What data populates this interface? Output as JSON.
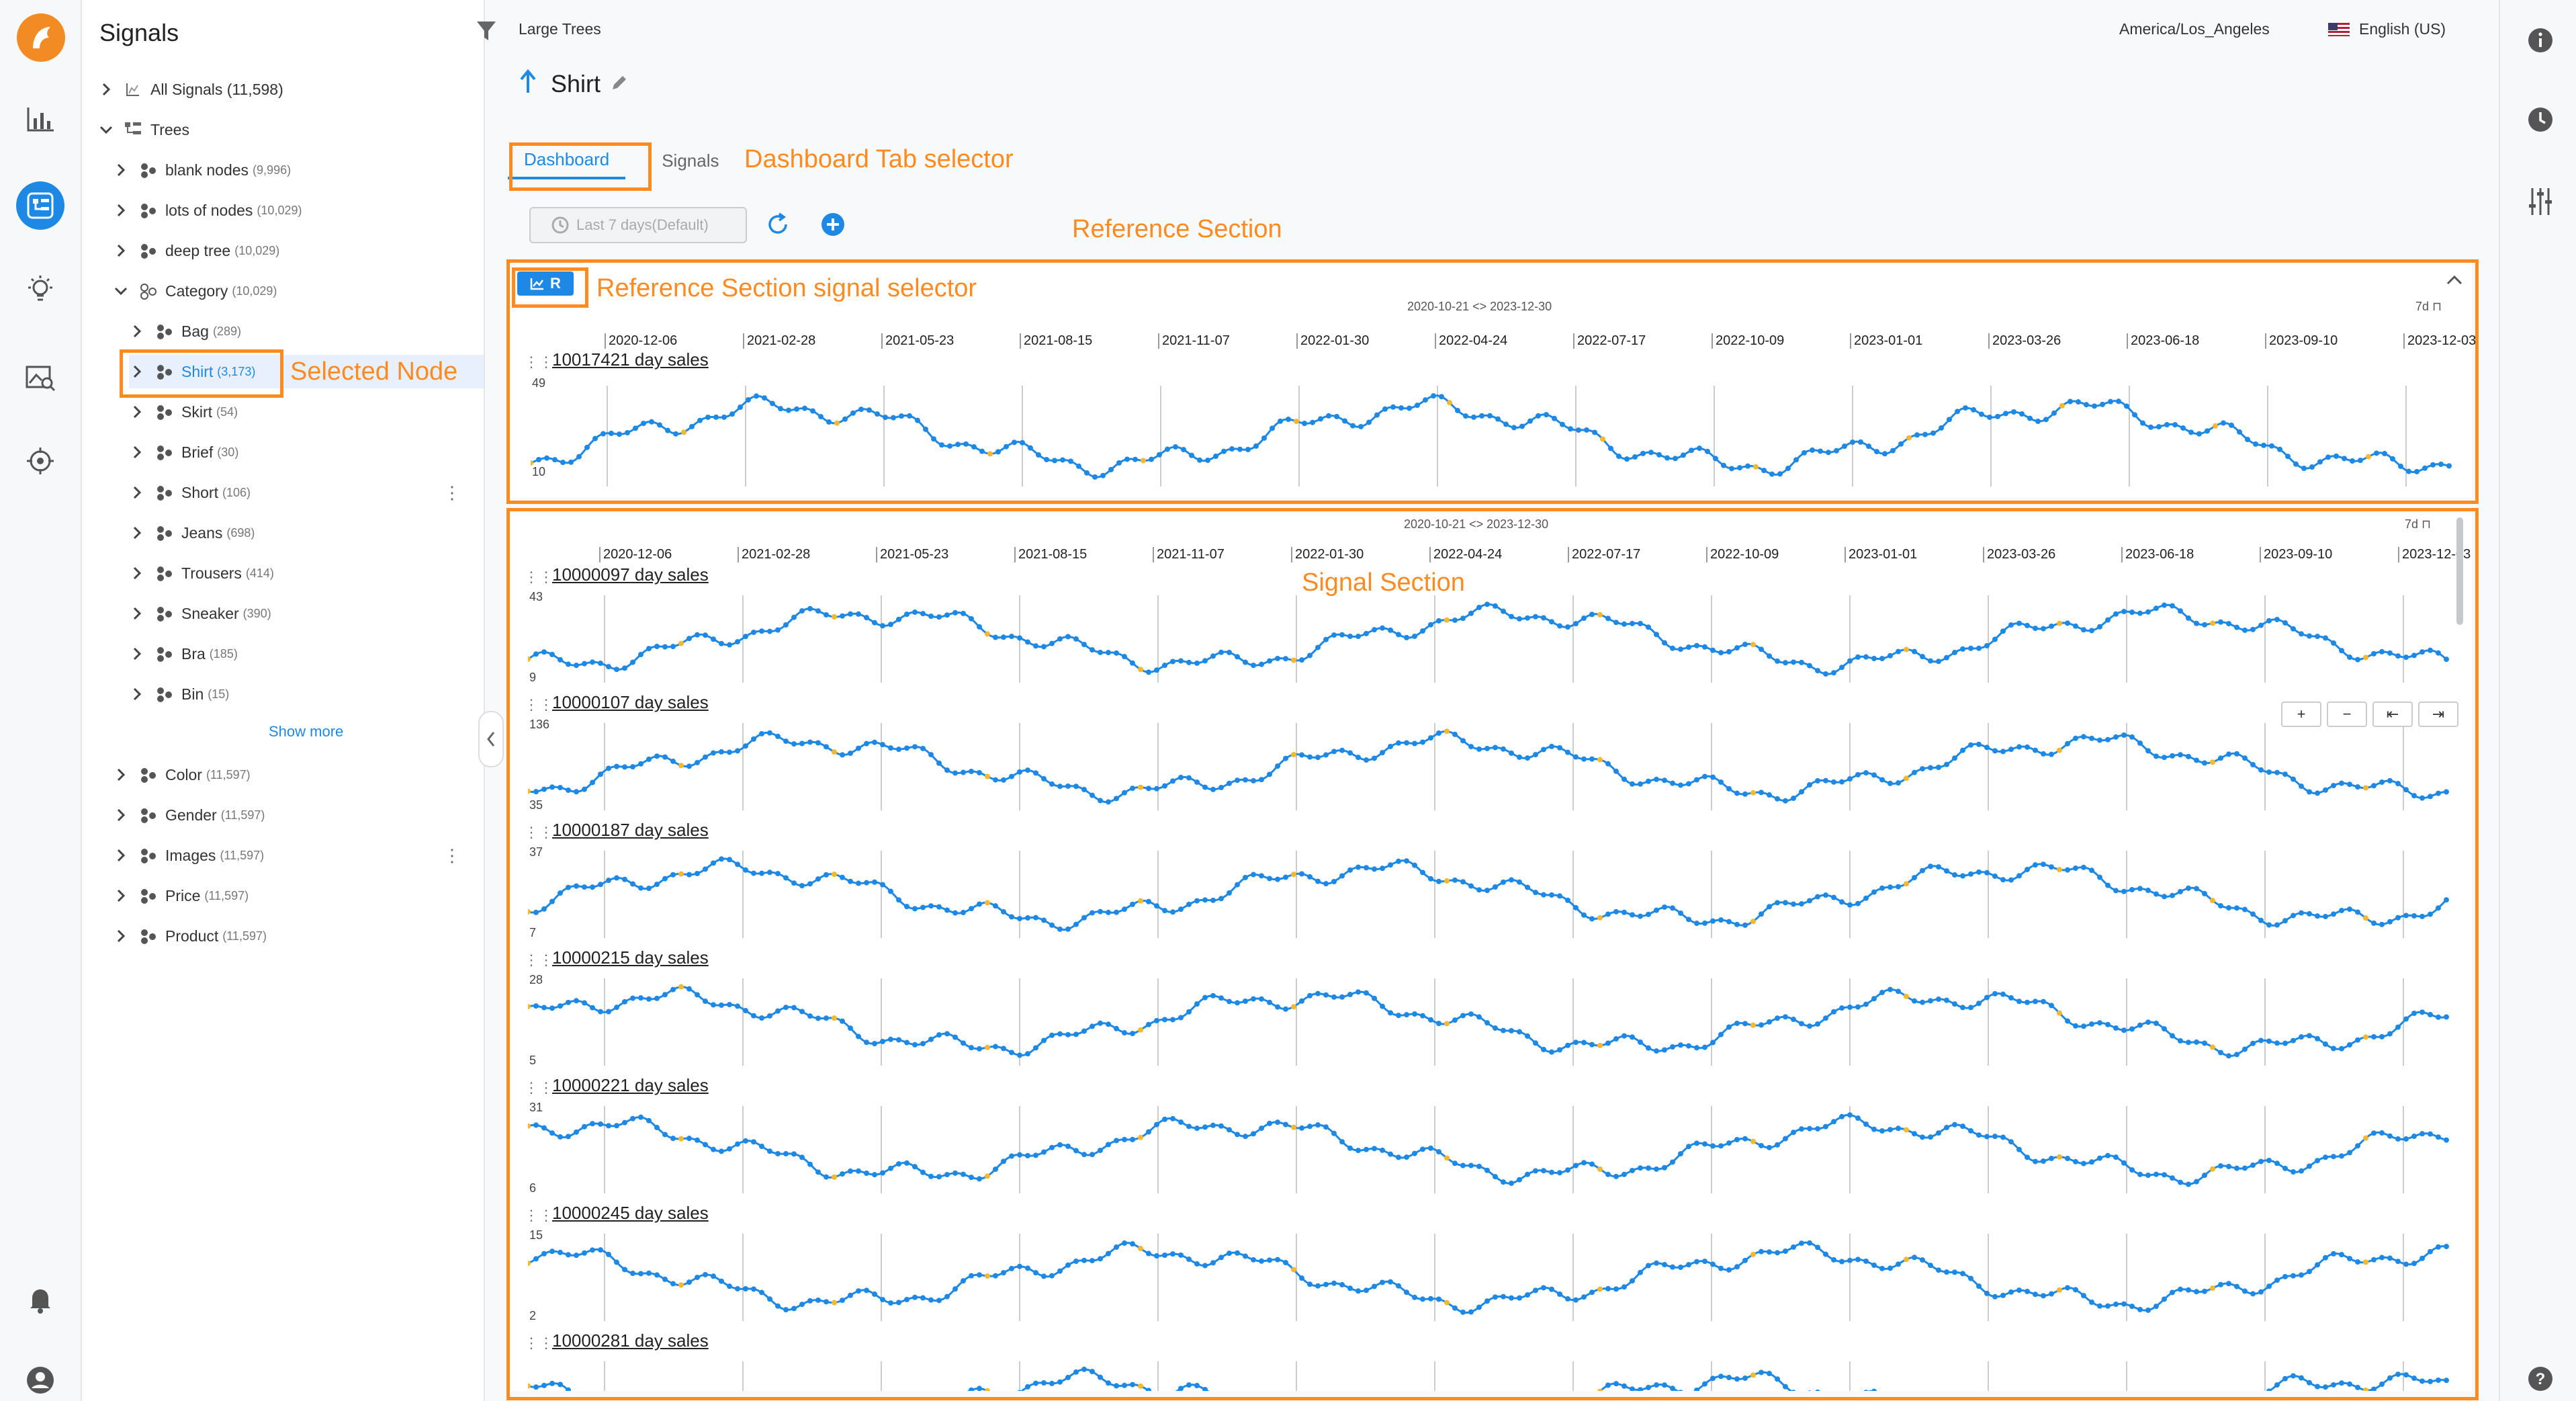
{
  "app": {
    "panel_title": "Signals"
  },
  "tree": {
    "all_signals": "All Signals (11,598)",
    "trees_label": "Trees",
    "nodes": [
      {
        "label": "blank nodes",
        "count": "(9,996)"
      },
      {
        "label": "lots of nodes",
        "count": "(10,029)"
      },
      {
        "label": "deep tree",
        "count": "(10,029)"
      },
      {
        "label": "Category",
        "count": "(10,029)"
      },
      {
        "label": "Bag",
        "count": "(289)"
      },
      {
        "label": "Shirt",
        "count": "(3,173)"
      },
      {
        "label": "Skirt",
        "count": "(54)"
      },
      {
        "label": "Brief",
        "count": "(30)"
      },
      {
        "label": "Short",
        "count": "(106)"
      },
      {
        "label": "Jeans",
        "count": "(698)"
      },
      {
        "label": "Trousers",
        "count": "(414)"
      },
      {
        "label": "Sneaker",
        "count": "(390)"
      },
      {
        "label": "Bra",
        "count": "(185)"
      },
      {
        "label": "Bin",
        "count": "(15)"
      },
      {
        "label": "Color",
        "count": "(11,597)"
      },
      {
        "label": "Gender",
        "count": "(11,597)"
      },
      {
        "label": "Images",
        "count": "(11,597)"
      },
      {
        "label": "Price",
        "count": "(11,597)"
      },
      {
        "label": "Product",
        "count": "(11,597)"
      }
    ],
    "show_more": "Show more"
  },
  "header": {
    "breadcrumb": "Large Trees",
    "timezone": "America/Los_Angeles",
    "language": "English (US)",
    "title": "Shirt"
  },
  "tabs": {
    "dashboard": "Dashboard",
    "signals": "Signals"
  },
  "time_range": {
    "label": "Last 7 days(Default)",
    "range": "2020-10-21 <> 2023-12-30",
    "period": "7d"
  },
  "axis_dates": [
    "2020-12-06",
    "2021-02-28",
    "2021-05-23",
    "2021-08-15",
    "2021-11-07",
    "2022-01-30",
    "2022-04-24",
    "2022-07-17",
    "2022-10-09",
    "2023-01-01",
    "2023-03-26",
    "2023-06-18",
    "2023-09-10",
    "2023-12-03"
  ],
  "reference": {
    "button": "R",
    "signal": {
      "name": "10017421 day sales",
      "ymax": "49",
      "ymin": "10"
    }
  },
  "signals": [
    {
      "name": "10000097 day sales",
      "ymax": "43",
      "ymin": "9"
    },
    {
      "name": "10000107 day sales",
      "ymax": "136",
      "ymin": "35"
    },
    {
      "name": "10000187 day sales",
      "ymax": "37",
      "ymin": "7"
    },
    {
      "name": "10000215 day sales",
      "ymax": "28",
      "ymin": "5"
    },
    {
      "name": "10000221 day sales",
      "ymax": "31",
      "ymin": "6"
    },
    {
      "name": "10000245 day sales",
      "ymax": "15",
      "ymin": "2"
    },
    {
      "name": "10000281 day sales",
      "ymax": "",
      "ymin": ""
    }
  ],
  "zoom": {
    "in": "+",
    "out": "−",
    "back": "⇤",
    "forward": "⇥"
  },
  "annotations": {
    "dashboard_tab": "Dashboard Tab selector",
    "reference_section": "Reference Section",
    "reference_selector": "Reference Section signal selector",
    "selected_node": "Selected Node",
    "signal_section": "Signal Section"
  },
  "colors": {
    "accent": "#1e88e5",
    "annotation": "#ff8a1f",
    "logo": "#f28b23"
  }
}
